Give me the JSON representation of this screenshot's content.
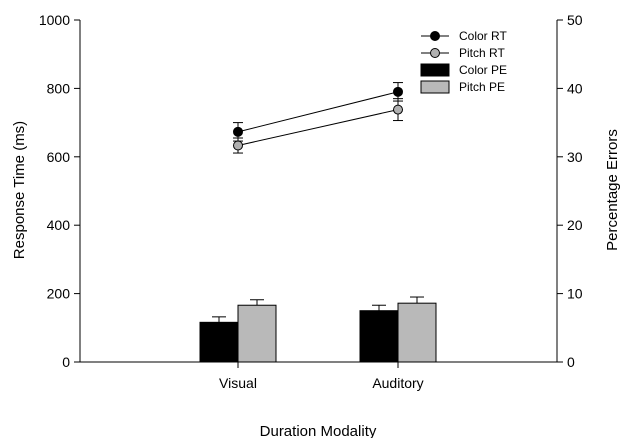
{
  "chart_data": {
    "type": "bar",
    "categories": [
      "Visual",
      "Auditory"
    ],
    "xlabel": "Duration Modality",
    "ylabel": "Response Time (ms)",
    "y2label": "Percentage Errors",
    "ylim": [
      0,
      1000
    ],
    "y2lim": [
      0,
      50
    ],
    "yticks": [
      "0",
      "200",
      "400",
      "600",
      "800",
      "1000"
    ],
    "y2ticks": [
      "0",
      "10",
      "20",
      "30",
      "40",
      "50"
    ],
    "grid": false,
    "legend_position": "top-right",
    "line_series": [
      {
        "name": "Color RT",
        "axis": "left",
        "values": [
          673,
          790
        ],
        "errors": [
          27,
          27
        ],
        "marker_color": "#000000"
      },
      {
        "name": "Pitch RT",
        "axis": "left",
        "values": [
          633,
          738
        ],
        "errors": [
          22,
          32
        ],
        "marker_color": "#b0b0b0"
      }
    ],
    "bar_series": [
      {
        "name": "Color PE",
        "axis": "right",
        "values": [
          5.8,
          7.5
        ],
        "errors": [
          0.8,
          0.8
        ],
        "color": "#000000"
      },
      {
        "name": "Pitch PE",
        "axis": "right",
        "values": [
          8.3,
          8.6
        ],
        "errors": [
          0.8,
          0.9
        ],
        "color": "#b9b9b9"
      }
    ]
  }
}
